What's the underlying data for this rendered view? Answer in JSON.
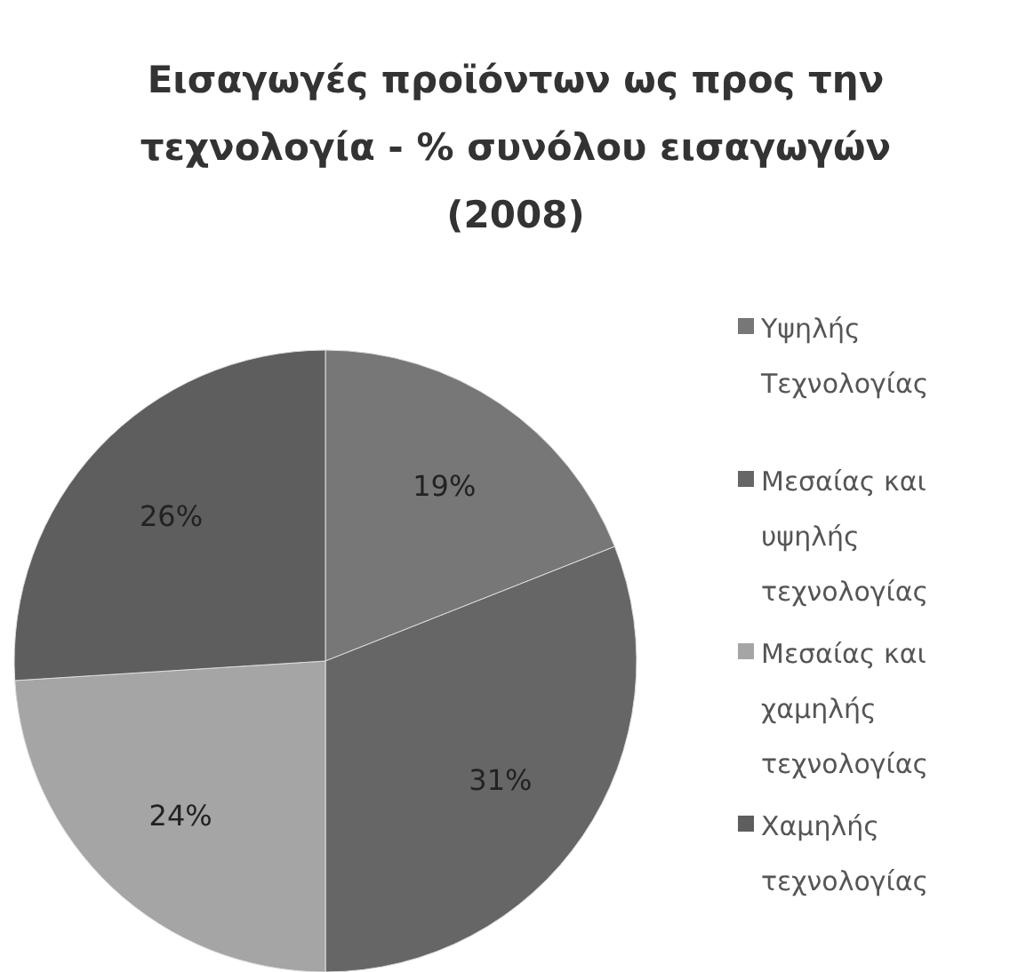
{
  "chart_data": {
    "type": "pie",
    "title": "Εισαγωγές προϊόντων ως προς την τεχνολογία - % συνόλου εισαγωγών (2008)",
    "categories": [
      "Υψηλής Τεχνολογίας",
      "Μεσαίας και υψηλής τεχνολογίας",
      "Μεσαίας και χαμηλής τεχνολογίας",
      "Χαμηλής τεχνολογίας"
    ],
    "values": [
      19,
      31,
      24,
      26
    ],
    "colors": [
      "#777777",
      "#666666",
      "#a5a5a5",
      "#5e5e5e"
    ],
    "value_labels": [
      "19%",
      "31%",
      "24%",
      "26%"
    ],
    "legend": "right"
  }
}
